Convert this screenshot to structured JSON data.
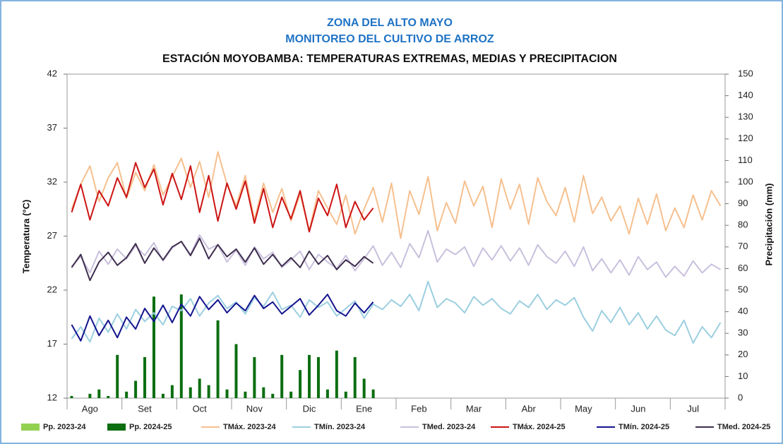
{
  "chart_data": {
    "type": "line",
    "title": "ZONA DEL ALTO MAYO",
    "subtitle": "MONITOREO DEL CULTIVO DE ARROZ",
    "heading": "ESTACIÓN MOYOBAMBA: TEMPERATURAS EXTREMAS, MEDIAS Y PRECIPITACION",
    "y_label": "Temperatura (°C)",
    "y2_label": "Precipitación (mm)",
    "categories": [
      null,
      null,
      "Ago",
      null,
      null,
      null,
      null,
      null,
      "Set",
      null,
      null,
      null,
      null,
      null,
      "Oct",
      null,
      null,
      null,
      null,
      null,
      "Nov",
      null,
      null,
      null,
      null,
      null,
      "Dic",
      null,
      null,
      null,
      null,
      null,
      "Ene",
      null,
      null,
      null,
      null,
      null,
      "Feb",
      null,
      null,
      null,
      null,
      null,
      "Mar",
      null,
      null,
      null,
      null,
      null,
      "Abr",
      null,
      null,
      null,
      null,
      null,
      "May",
      null,
      null,
      null,
      null,
      null,
      "Jun",
      null,
      null,
      null,
      null,
      null,
      "Jul",
      null,
      null,
      null
    ],
    "ylim": [
      12,
      42
    ],
    "yticks": [
      12,
      17,
      22,
      27,
      32,
      37,
      42
    ],
    "y2lim": [
      0,
      150
    ],
    "y2ticks": [
      0,
      10,
      20,
      30,
      40,
      50,
      60,
      70,
      80,
      90,
      100,
      110,
      120,
      130,
      140,
      150
    ],
    "series": [
      {
        "name": "Pp. 2023-24",
        "type": "bar",
        "axis": "y2",
        "color": "#92d050",
        "values": [
          null,
          null,
          null,
          null,
          null,
          null,
          null,
          null,
          null,
          null,
          null,
          null,
          null,
          null,
          null,
          null,
          null,
          null,
          null,
          null,
          null,
          null,
          null,
          null,
          null,
          null,
          null,
          null,
          null,
          null,
          null,
          null,
          null,
          null,
          null,
          null,
          null,
          null,
          null,
          null,
          null,
          null,
          null,
          null,
          null,
          null,
          null,
          null,
          null,
          null,
          null,
          null,
          null,
          null,
          null,
          null,
          null,
          null,
          null,
          null,
          null,
          null,
          null,
          null,
          null,
          null,
          null,
          null,
          null,
          null,
          null,
          null
        ]
      },
      {
        "name": "Pp. 2024-25",
        "type": "bar",
        "axis": "y2",
        "color": "#0b6e10",
        "values": [
          1,
          0,
          2,
          4,
          1,
          20,
          3,
          8,
          19,
          47,
          2,
          6,
          48,
          5,
          9,
          6,
          36,
          4,
          25,
          3,
          19,
          5,
          2,
          20,
          3,
          13,
          20,
          19,
          4,
          22,
          3,
          19,
          9,
          4,
          null,
          null,
          null,
          null,
          null,
          null,
          null,
          null,
          null,
          null,
          null,
          null,
          null,
          null,
          null,
          null,
          null,
          null,
          null,
          null,
          null,
          null,
          null,
          null,
          null,
          null,
          null,
          null,
          null,
          null,
          null,
          null,
          null,
          null,
          null,
          null,
          null,
          null
        ]
      },
      {
        "name": "TMáx. 2023-24",
        "color": "#f6c08f",
        "values": [
          29.5,
          31.8,
          33.5,
          30.2,
          32.4,
          33.8,
          30.5,
          32.9,
          31.2,
          33.6,
          30.8,
          32.5,
          34.2,
          31.5,
          33.9,
          30.6,
          34.8,
          31.8,
          29.8,
          32.6,
          28.5,
          31.9,
          29.2,
          31.4,
          28.4,
          30.9,
          27.5,
          31.2,
          29.6,
          28.1,
          30.8,
          27.2,
          29.5,
          31.5,
          28.3,
          31.9,
          26.8,
          31.2,
          29.0,
          32.5,
          27.5,
          30.1,
          28.2,
          32.1,
          29.8,
          31.6,
          27.8,
          32.3,
          29.5,
          31.8,
          28.1,
          32.4,
          30.2,
          28.9,
          31.5,
          28.3,
          32.6,
          29.1,
          30.6,
          28.4,
          29.8,
          27.2,
          30.5,
          28.1,
          30.9,
          27.5,
          29.6,
          27.8,
          30.8,
          28.5,
          31.2,
          29.8
        ]
      },
      {
        "name": "TMín. 2023-24",
        "color": "#9ccfe0",
        "values": [
          17.5,
          18.6,
          17.2,
          19.4,
          18.1,
          19.8,
          18.4,
          20.2,
          19.1,
          19.9,
          18.8,
          20.5,
          20.1,
          21.2,
          19.6,
          20.8,
          21.5,
          20.3,
          20.9,
          19.8,
          21.3,
          20.5,
          21.8,
          20.2,
          20.6,
          19.5,
          21.1,
          20.4,
          20.9,
          19.6,
          20.3,
          21.0,
          19.4,
          20.7,
          20.2,
          21.1,
          20.5,
          21.6,
          20.1,
          22.8,
          20.4,
          21.2,
          20.8,
          19.9,
          21.4,
          20.6,
          21.2,
          20.3,
          19.8,
          21.0,
          20.4,
          21.6,
          20.2,
          21.1,
          20.6,
          21.3,
          19.5,
          18.2,
          20.1,
          19.0,
          20.4,
          18.8,
          19.9,
          18.4,
          19.6,
          18.3,
          17.8,
          19.2,
          17.1,
          18.6,
          17.6,
          19.0
        ]
      },
      {
        "name": "TMed. 2023-24",
        "color": "#c9c0dd",
        "values": [
          24.2,
          25.1,
          23.6,
          25.6,
          24.4,
          25.8,
          24.9,
          26.1,
          25.2,
          26.4,
          24.7,
          25.9,
          26.5,
          25.3,
          27.1,
          25.8,
          26.2,
          24.6,
          25.7,
          24.3,
          26.0,
          24.9,
          25.5,
          24.1,
          24.8,
          25.6,
          23.9,
          25.3,
          24.6,
          24.0,
          25.2,
          23.8,
          24.9,
          26.1,
          24.3,
          25.5,
          24.1,
          26.3,
          25.0,
          27.5,
          24.6,
          25.8,
          25.3,
          26.0,
          24.2,
          25.9,
          24.8,
          26.1,
          24.7,
          25.9,
          24.3,
          26.2,
          25.1,
          24.5,
          25.6,
          24.2,
          26.0,
          23.8,
          24.9,
          23.6,
          24.8,
          23.4,
          25.1,
          23.9,
          24.6,
          23.2,
          24.2,
          23.3,
          24.7,
          23.6,
          24.4,
          23.9
        ]
      },
      {
        "name": "TMáx. 2024-25",
        "color": "#cc1414",
        "values": [
          29.2,
          31.8,
          28.5,
          31.2,
          29.8,
          32.4,
          30.6,
          33.8,
          31.5,
          33.2,
          29.9,
          32.8,
          30.4,
          33.5,
          29.2,
          32.6,
          28.4,
          31.9,
          29.5,
          32.1,
          28.2,
          31.4,
          27.8,
          30.6,
          28.6,
          31.2,
          27.4,
          30.5,
          28.9,
          31.8,
          27.8,
          30.2,
          28.5,
          29.6,
          null,
          null,
          null,
          null,
          null,
          null,
          null,
          null,
          null,
          null,
          null,
          null,
          null,
          null,
          null,
          null,
          null,
          null,
          null,
          null,
          null,
          null,
          null,
          null,
          null,
          null,
          null,
          null,
          null,
          null,
          null,
          null,
          null,
          null,
          null,
          null,
          null,
          null
        ]
      },
      {
        "name": "TMín. 2024-25",
        "color": "#14148f",
        "values": [
          18.8,
          17.3,
          19.6,
          17.8,
          19.2,
          17.6,
          19.5,
          18.4,
          20.3,
          19.1,
          20.6,
          19.0,
          20.7,
          19.6,
          21.4,
          20.2,
          21.1,
          19.9,
          20.8,
          20.1,
          21.5,
          20.3,
          20.9,
          19.8,
          20.5,
          21.2,
          19.7,
          20.6,
          21.6,
          20.1,
          19.6,
          20.8,
          19.9,
          20.9,
          null,
          null,
          null,
          null,
          null,
          null,
          null,
          null,
          null,
          null,
          null,
          null,
          null,
          null,
          null,
          null,
          null,
          null,
          null,
          null,
          null,
          null,
          null,
          null,
          null,
          null,
          null,
          null,
          null,
          null,
          null,
          null,
          null,
          null,
          null,
          null,
          null,
          null
        ]
      },
      {
        "name": "TMed. 2024-25",
        "color": "#3f2f4f",
        "values": [
          24.1,
          25.3,
          22.9,
          24.6,
          25.5,
          24.3,
          25.0,
          26.3,
          24.5,
          25.9,
          24.8,
          26.0,
          26.5,
          25.2,
          26.8,
          24.9,
          26.2,
          25.1,
          25.8,
          24.6,
          25.9,
          24.4,
          25.3,
          24.2,
          25.0,
          24.1,
          25.6,
          24.4,
          25.2,
          23.9,
          24.8,
          24.2,
          25.1,
          24.5,
          null,
          null,
          null,
          null,
          null,
          null,
          null,
          null,
          null,
          null,
          null,
          null,
          null,
          null,
          null,
          null,
          null,
          null,
          null,
          null,
          null,
          null,
          null,
          null,
          null,
          null,
          null,
          null,
          null,
          null,
          null,
          null,
          null,
          null,
          null,
          null,
          null,
          null
        ]
      }
    ]
  }
}
